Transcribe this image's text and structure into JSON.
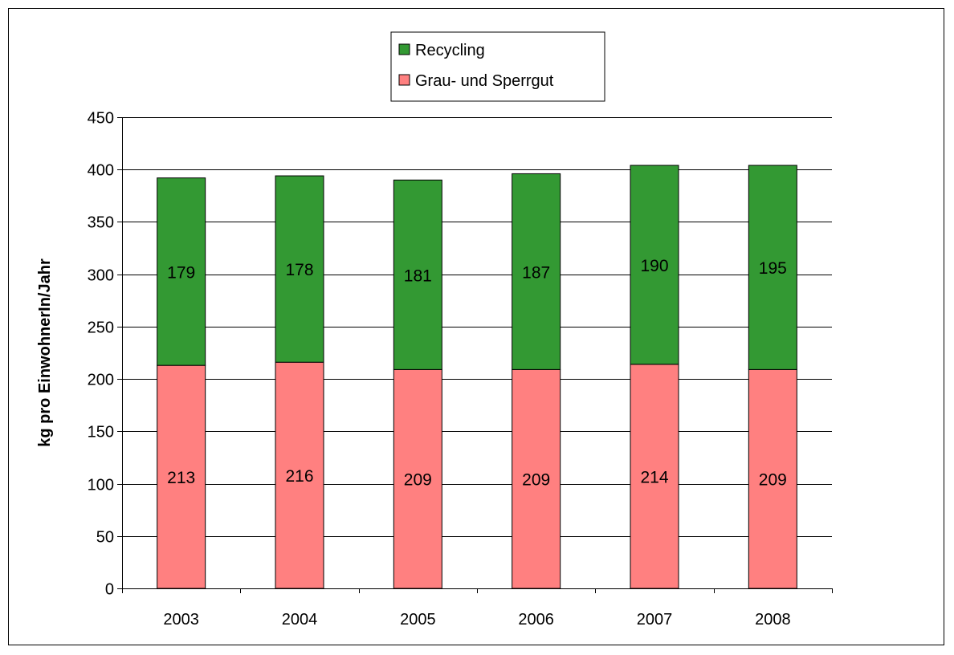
{
  "chart_data": {
    "type": "bar",
    "stacked": true,
    "categories": [
      "2003",
      "2004",
      "2005",
      "2006",
      "2007",
      "2008"
    ],
    "series": [
      {
        "name": "Grau- und Sperrgut",
        "values": [
          213,
          216,
          209,
          209,
          214,
          209
        ],
        "color": "#ff8080"
      },
      {
        "name": "Recycling",
        "values": [
          179,
          178,
          181,
          187,
          190,
          195
        ],
        "color": "#339933"
      }
    ],
    "ylabel": "kg pro EinwohnerIn/Jahr",
    "ylim": [
      0,
      450
    ],
    "yticks": [
      0,
      50,
      100,
      150,
      200,
      250,
      300,
      350,
      400,
      450
    ],
    "grid": true,
    "legend_position": "top-center"
  }
}
